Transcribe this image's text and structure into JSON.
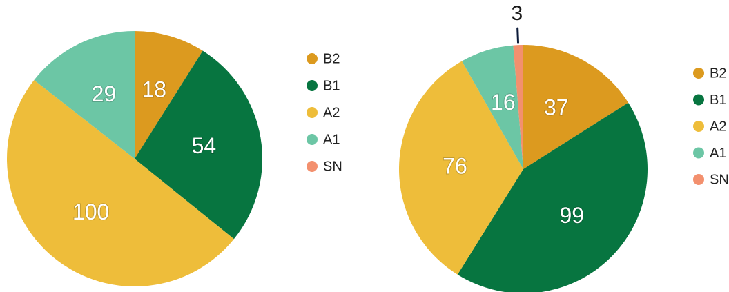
{
  "chart_data": [
    {
      "type": "pie",
      "categories": [
        "B2",
        "B1",
        "A2",
        "A1",
        "SN"
      ],
      "values": [
        18,
        54,
        100,
        29,
        0
      ],
      "colors": [
        "#dc9a1f",
        "#077540",
        "#eebd3a",
        "#6cc6a5",
        "#f3906e"
      ]
    },
    {
      "type": "pie",
      "categories": [
        "B2",
        "B1",
        "A2",
        "A1",
        "SN"
      ],
      "values": [
        37,
        99,
        76,
        16,
        3
      ],
      "colors": [
        "#dc9a1f",
        "#077540",
        "#eebd3a",
        "#6cc6a5",
        "#f3906e"
      ]
    }
  ]
}
